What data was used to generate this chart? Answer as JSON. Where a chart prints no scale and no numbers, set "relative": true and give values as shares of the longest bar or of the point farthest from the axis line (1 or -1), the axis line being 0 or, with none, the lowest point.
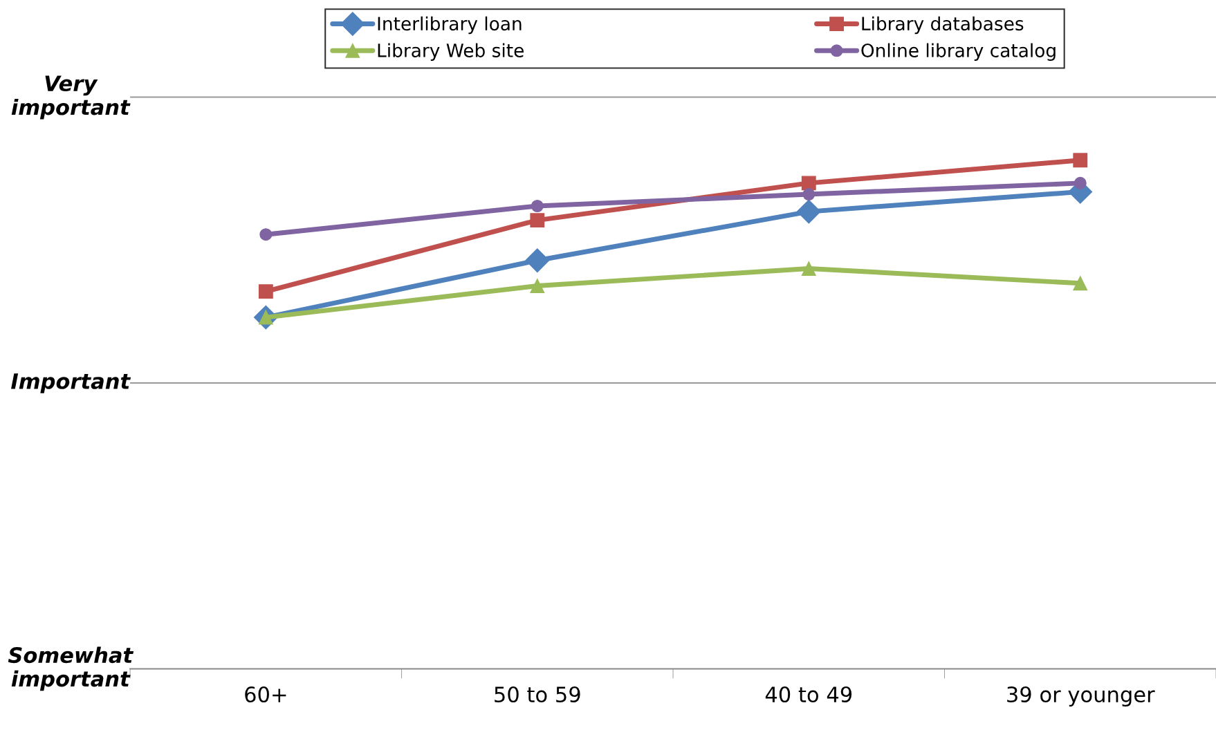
{
  "chart_data": {
    "type": "line",
    "categories": [
      "60+",
      "50 to 59",
      "40 to 49",
      "39 or younger"
    ],
    "relative": true,
    "series": [
      {
        "name": "Interlibrary loan",
        "color": "#4f81bd",
        "marker": "diamond",
        "values": [
          0.691,
          0.803,
          0.899,
          0.938
        ]
      },
      {
        "name": "Library databases",
        "color": "#c0504d",
        "marker": "square",
        "values": [
          0.742,
          0.882,
          0.955,
          1.0
        ]
      },
      {
        "name": "Library Web site",
        "color": "#9bbb59",
        "marker": "triangle",
        "values": [
          0.691,
          0.753,
          0.787,
          0.758
        ]
      },
      {
        "name": "Online library catalog",
        "color": "#8064a2",
        "marker": "circle",
        "values": [
          0.854,
          0.91,
          0.933,
          0.955
        ]
      }
    ],
    "annotations": [
      "Somewhat\nimportant"
    ],
    "ref_lines": [
      {
        "axis": "y",
        "value": 0.562,
        "label": "Important",
        "color": "#999999"
      },
      {
        "axis": "y",
        "value": 1.124,
        "label": "Very\nimportant",
        "color": "#999999"
      }
    ],
    "legend": "top",
    "line_style": "solid"
  }
}
